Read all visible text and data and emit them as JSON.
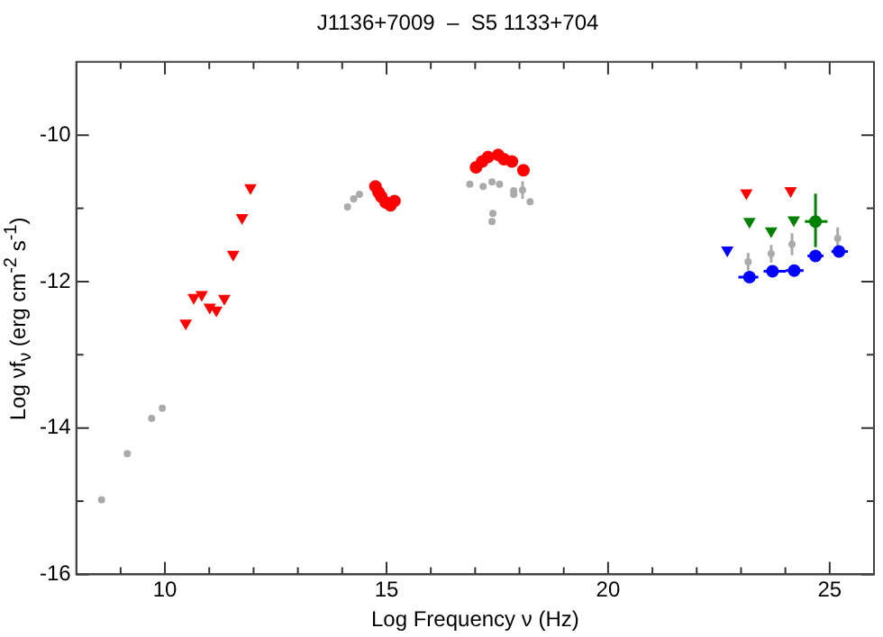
{
  "chart_data": {
    "type": "scatter",
    "title": "J1136+7009  –  S5 1133+704",
    "xlabel": "Log Frequency ν (Hz)",
    "ylabel": "Log νf$_{ν}$ (erg cm$^{-2}$ s$^{-1}$)",
    "xlim": [
      8,
      26
    ],
    "ylim": [
      -16,
      -9
    ],
    "xticks": [
      {
        "value": 9,
        "label": null
      },
      10,
      {
        "value": 11,
        "label": null
      },
      {
        "value": 12,
        "label": null
      },
      {
        "value": 13,
        "label": null
      },
      {
        "value": 14,
        "label": null
      },
      15,
      {
        "value": 16,
        "label": null
      },
      {
        "value": 17,
        "label": null
      },
      {
        "value": 18,
        "label": null
      },
      {
        "value": 19,
        "label": null
      },
      20,
      {
        "value": 21,
        "label": null
      },
      {
        "value": 22,
        "label": null
      },
      {
        "value": 23,
        "label": null
      },
      {
        "value": 24,
        "label": null
      },
      25
    ],
    "yticks": [
      -16,
      {
        "value": -15,
        "label": null
      },
      -14,
      {
        "value": -13,
        "label": null
      },
      -12,
      {
        "value": -11,
        "label": null
      },
      -10
    ],
    "grid": false,
    "legend": false,
    "series": [
      {
        "color": "#aaaaaa",
        "marker": "circle",
        "x": [
          8.57,
          9.15,
          9.7,
          9.94,
          14.12,
          14.26,
          14.39,
          16.88,
          17.18,
          17.38,
          17.55,
          17.4,
          17.38,
          17.87,
          17.87,
          18.07,
          18.24,
          23.16,
          23.68,
          24.15,
          25.18
        ],
        "values": [
          -14.98,
          -14.35,
          -13.87,
          -13.73,
          -10.98,
          -10.87,
          -10.81,
          -10.67,
          -10.7,
          -10.64,
          -10.67,
          -11.07,
          -11.18,
          -10.76,
          -10.81,
          -10.75,
          -10.91,
          -11.73,
          -11.62,
          -11.49,
          -11.41
        ],
        "errors": [
          null,
          null,
          null,
          null,
          null,
          null,
          null,
          null,
          null,
          null,
          null,
          null,
          null,
          null,
          null,
          0.12,
          null,
          0.12,
          0.12,
          0.15,
          0.15
        ]
      },
      {
        "color": "#ff0000",
        "marker": "triangle",
        "x": [
          10.47,
          10.65,
          10.83,
          11.01,
          11.16,
          11.34,
          11.54,
          11.74,
          11.93,
          23.12,
          24.12
        ],
        "values": [
          -12.57,
          -12.22,
          -12.18,
          -12.35,
          -12.39,
          -12.23,
          -11.63,
          -11.13,
          -10.72,
          -10.79,
          -10.76
        ]
      },
      {
        "color": "#ff0000",
        "marker": "circle",
        "x": [
          14.75,
          14.82,
          14.88,
          14.98,
          15.09,
          15.18,
          17.02,
          17.16,
          17.29,
          17.52,
          17.65,
          17.83,
          18.09
        ],
        "values": [
          -10.7,
          -10.78,
          -10.84,
          -10.92,
          -10.96,
          -10.9,
          -10.44,
          -10.36,
          -10.3,
          -10.27,
          -10.33,
          -10.36,
          -10.48
        ]
      },
      {
        "color": "#008000",
        "marker": "triangle",
        "x": [
          23.19,
          23.68,
          24.19
        ],
        "values": [
          -11.18,
          -11.31,
          -11.16
        ]
      },
      {
        "color": "#008000",
        "marker": "circle",
        "x": [
          24.68
        ],
        "values": [
          -11.18
        ],
        "errors": [
          [
            -11.53,
            -10.8
          ]
        ],
        "xerrors": [
          [
            24.44,
            24.95
          ]
        ]
      },
      {
        "color": "#0000ff",
        "marker": "triangle",
        "x": [
          22.69
        ],
        "values": [
          -11.57
        ]
      },
      {
        "color": "#0000ff",
        "marker": "circle",
        "x": [
          23.19,
          23.71,
          24.2,
          24.68,
          25.21
        ],
        "values": [
          -11.94,
          -11.86,
          -11.85,
          -11.65,
          -11.59
        ],
        "errors": [
          0.05,
          0.05,
          0.06,
          0.08,
          0.08
        ],
        "xerrors": [
          [
            22.94,
            23.39
          ],
          [
            23.51,
            24.01
          ],
          [
            24.01,
            24.41
          ],
          [
            24.5,
            24.86
          ],
          [
            25.04,
            25.41
          ]
        ]
      }
    ]
  }
}
